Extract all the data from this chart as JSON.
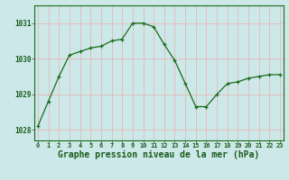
{
  "x": [
    0,
    1,
    2,
    3,
    4,
    5,
    6,
    7,
    8,
    9,
    10,
    11,
    12,
    13,
    14,
    15,
    16,
    17,
    18,
    19,
    20,
    21,
    22,
    23
  ],
  "y": [
    1028.1,
    1028.8,
    1029.5,
    1030.1,
    1030.2,
    1030.3,
    1030.35,
    1030.5,
    1030.55,
    1031.0,
    1031.0,
    1030.9,
    1030.4,
    1029.95,
    1029.3,
    1028.65,
    1028.65,
    1029.0,
    1029.3,
    1029.35,
    1029.45,
    1029.5,
    1029.55,
    1029.55
  ],
  "line_color": "#1a6b1a",
  "marker": "+",
  "bg_color": "#cce8e8",
  "grid_color_v": "#e8b8b8",
  "grid_color_h": "#e8b8b8",
  "title": "Graphe pression niveau de la mer (hPa)",
  "title_color": "#1a5c1a",
  "title_fontsize": 7.0,
  "xlabel_ticks": [
    "0",
    "1",
    "2",
    "3",
    "4",
    "5",
    "6",
    "7",
    "8",
    "9",
    "10",
    "11",
    "12",
    "13",
    "14",
    "15",
    "16",
    "17",
    "18",
    "19",
    "20",
    "21",
    "22",
    "23"
  ],
  "yticks": [
    1028,
    1029,
    1030,
    1031
  ],
  "ylim": [
    1027.7,
    1031.5
  ],
  "xlim": [
    -0.3,
    23.3
  ]
}
